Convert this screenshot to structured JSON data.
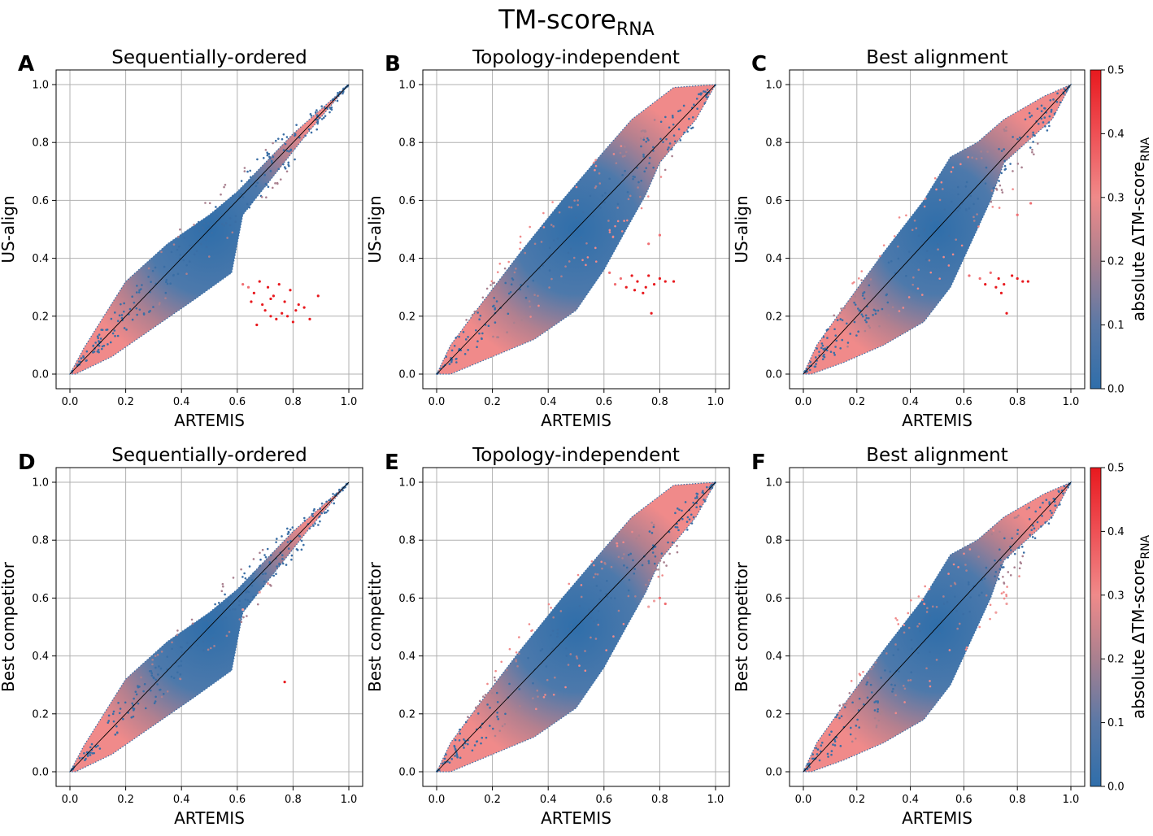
{
  "figure": {
    "title_main": "TM-score",
    "title_sub": "RNA"
  },
  "colorbar": {
    "label_main": "absolute ΔTM-score",
    "label_sub": "RNA",
    "range": [
      0,
      0.5
    ],
    "ticks": [
      "0.0",
      "0.1",
      "0.2",
      "0.3",
      "0.4",
      "0.5"
    ],
    "color_low": "#2f6eaa",
    "color_mid": "#f08a8a",
    "color_high": "#e8191e"
  },
  "chart_data": [
    {
      "type": "scatter",
      "panel": "A",
      "title": "Sequentially-ordered",
      "xlabel": "ARTEMIS",
      "ylabel": "US-align",
      "xlim": [
        0,
        1
      ],
      "ylim": [
        0,
        1
      ],
      "xticks": [
        "0.0",
        "0.2",
        "0.4",
        "0.6",
        "0.8",
        "1.0"
      ],
      "yticks": [
        "0.0",
        "0.2",
        "0.4",
        "0.6",
        "0.8",
        "1.0"
      ],
      "grid": true,
      "outliers": [
        [
          0.62,
          0.31
        ],
        [
          0.64,
          0.3
        ],
        [
          0.66,
          0.28
        ],
        [
          0.68,
          0.32
        ],
        [
          0.69,
          0.24
        ],
        [
          0.7,
          0.22
        ],
        [
          0.71,
          0.3
        ],
        [
          0.72,
          0.2
        ],
        [
          0.73,
          0.27
        ],
        [
          0.74,
          0.19
        ],
        [
          0.75,
          0.31
        ],
        [
          0.76,
          0.21
        ],
        [
          0.77,
          0.25
        ],
        [
          0.78,
          0.2
        ],
        [
          0.79,
          0.29
        ],
        [
          0.8,
          0.18
        ],
        [
          0.81,
          0.22
        ],
        [
          0.82,
          0.24
        ],
        [
          0.84,
          0.23
        ],
        [
          0.86,
          0.19
        ],
        [
          0.89,
          0.27
        ],
        [
          0.67,
          0.17
        ],
        [
          0.72,
          0.26
        ],
        [
          0.65,
          0.25
        ]
      ]
    },
    {
      "type": "scatter",
      "panel": "B",
      "title": "Topology-independent",
      "xlabel": "ARTEMIS",
      "ylabel": "US-align",
      "xlim": [
        0,
        1
      ],
      "ylim": [
        0,
        1
      ],
      "xticks": [
        "0.0",
        "0.2",
        "0.4",
        "0.6",
        "0.8",
        "1.0"
      ],
      "yticks": [
        "0.0",
        "0.2",
        "0.4",
        "0.6",
        "0.8",
        "1.0"
      ],
      "grid": true,
      "outliers": [
        [
          0.62,
          0.35
        ],
        [
          0.64,
          0.31
        ],
        [
          0.66,
          0.33
        ],
        [
          0.68,
          0.3
        ],
        [
          0.7,
          0.34
        ],
        [
          0.71,
          0.29
        ],
        [
          0.72,
          0.32
        ],
        [
          0.74,
          0.28
        ],
        [
          0.75,
          0.3
        ],
        [
          0.76,
          0.34
        ],
        [
          0.77,
          0.21
        ],
        [
          0.78,
          0.31
        ],
        [
          0.8,
          0.33
        ],
        [
          0.82,
          0.32
        ],
        [
          0.85,
          0.32
        ],
        [
          0.76,
          0.45
        ],
        [
          0.8,
          0.48
        ]
      ]
    },
    {
      "type": "scatter",
      "panel": "C",
      "title": "Best alignment",
      "xlabel": "ARTEMIS",
      "ylabel": "US-align",
      "xlim": [
        0,
        1
      ],
      "ylim": [
        0,
        1
      ],
      "xticks": [
        "0.0",
        "0.2",
        "0.4",
        "0.6",
        "0.8",
        "1.0"
      ],
      "yticks": [
        "0.0",
        "0.2",
        "0.4",
        "0.6",
        "0.8",
        "1.0"
      ],
      "grid": true,
      "outliers": [
        [
          0.62,
          0.34
        ],
        [
          0.66,
          0.33
        ],
        [
          0.68,
          0.31
        ],
        [
          0.7,
          0.35
        ],
        [
          0.72,
          0.3
        ],
        [
          0.73,
          0.33
        ],
        [
          0.74,
          0.28
        ],
        [
          0.75,
          0.31
        ],
        [
          0.76,
          0.21
        ],
        [
          0.78,
          0.34
        ],
        [
          0.8,
          0.33
        ],
        [
          0.82,
          0.32
        ],
        [
          0.84,
          0.32
        ],
        [
          0.85,
          0.59
        ],
        [
          0.8,
          0.55
        ]
      ]
    },
    {
      "type": "scatter",
      "panel": "D",
      "title": "Sequentially-ordered",
      "xlabel": "ARTEMIS",
      "ylabel": "Best competitor",
      "xlim": [
        0,
        1
      ],
      "ylim": [
        0,
        1
      ],
      "xticks": [
        "0.0",
        "0.2",
        "0.4",
        "0.6",
        "0.8",
        "1.0"
      ],
      "yticks": [
        "0.0",
        "0.2",
        "0.4",
        "0.6",
        "0.8",
        "1.0"
      ],
      "grid": true,
      "outliers": [
        [
          0.77,
          0.31
        ],
        [
          0.68,
          0.62
        ],
        [
          0.71,
          0.65
        ],
        [
          0.62,
          0.56
        ]
      ]
    },
    {
      "type": "scatter",
      "panel": "E",
      "title": "Topology-independent",
      "xlabel": "ARTEMIS",
      "ylabel": "Best competitor",
      "xlim": [
        0,
        1
      ],
      "ylim": [
        0,
        1
      ],
      "xticks": [
        "0.0",
        "0.2",
        "0.4",
        "0.6",
        "0.8",
        "1.0"
      ],
      "yticks": [
        "0.0",
        "0.2",
        "0.4",
        "0.6",
        "0.8",
        "1.0"
      ],
      "grid": true,
      "outliers": [
        [
          0.78,
          0.59
        ],
        [
          0.8,
          0.6
        ],
        [
          0.76,
          0.57
        ],
        [
          0.82,
          0.58
        ]
      ]
    },
    {
      "type": "scatter",
      "panel": "F",
      "title": "Best alignment",
      "xlabel": "ARTEMIS",
      "ylabel": "Best competitor",
      "xlim": [
        0,
        1
      ],
      "ylim": [
        0,
        1
      ],
      "xticks": [
        "0.0",
        "0.2",
        "0.4",
        "0.6",
        "0.8",
        "1.0"
      ],
      "yticks": [
        "0.0",
        "0.2",
        "0.4",
        "0.6",
        "0.8",
        "1.0"
      ],
      "grid": true,
      "outliers": [
        [
          0.76,
          0.58
        ],
        [
          0.72,
          0.55
        ]
      ]
    }
  ]
}
